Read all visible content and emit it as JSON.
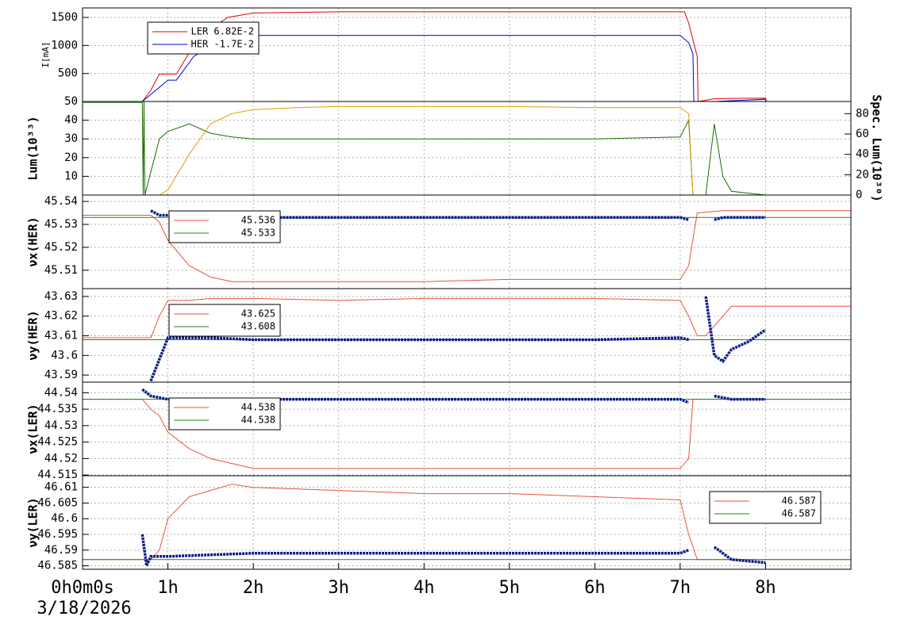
{
  "chart_data": [
    {
      "type": "line",
      "y_label": "I[mA]",
      "xlim": [
        0,
        9
      ],
      "ylim": [
        0,
        1670
      ],
      "yticks": [
        500,
        1000,
        1500
      ],
      "grid": true,
      "legend": "upper left",
      "series": [
        {
          "name": "LER 6.82E-2",
          "color": "#e00000",
          "x": [
            0,
            0.7,
            0.8,
            0.9,
            1.1,
            1.3,
            1.5,
            1.7,
            2,
            3,
            4,
            5,
            6,
            7,
            7.05,
            7.1,
            7.2,
            7.21,
            7.4,
            7.6,
            8,
            8.01,
            9
          ],
          "values": [
            0,
            0,
            200,
            490,
            490,
            1000,
            1300,
            1500,
            1580,
            1600,
            1600,
            1600,
            1600,
            1600,
            1600,
            1400,
            800,
            0,
            50,
            55,
            60,
            0,
            0
          ]
        },
        {
          "name": "HER -1.7E-2",
          "color": "#0000e0",
          "x": [
            0,
            0.7,
            1,
            1.1,
            1.3,
            1.5,
            1.6,
            2,
            3,
            4,
            5,
            6,
            7,
            7.1,
            7.15,
            7.16,
            7.4,
            8,
            8.01,
            9
          ],
          "values": [
            0,
            0,
            380,
            380,
            800,
            1000,
            1180,
            1180,
            1180,
            1180,
            1180,
            1180,
            1180,
            1050,
            850,
            0,
            0,
            40,
            0,
            0
          ]
        }
      ]
    },
    {
      "type": "line",
      "y_label": "Lum(10³³)",
      "y2_label": "Spec. Lum(10³⁰)",
      "xlim": [
        0,
        9
      ],
      "ylim": [
        0,
        50
      ],
      "yticks": [
        10,
        20,
        30,
        40,
        50
      ],
      "y2lim": [
        0,
        92
      ],
      "y2ticks": [
        0,
        20,
        40,
        60,
        80
      ],
      "grid": true,
      "series": [
        {
          "color": "#1a6e00",
          "x": [
            0,
            0.7,
            0.71,
            0.72,
            0.73,
            0.9,
            1,
            1.25,
            1.5,
            1.75,
            2,
            2.5,
            3,
            4,
            5,
            6,
            7,
            7.1,
            7.15,
            7.16,
            7.3,
            7.4,
            7.5,
            7.6,
            7.8,
            8
          ],
          "values": [
            49.5,
            49.5,
            0,
            50,
            0,
            30,
            34,
            38,
            33,
            31,
            30,
            30,
            30,
            30,
            30,
            30,
            31,
            40,
            0,
            0,
            0,
            38,
            10,
            2,
            1,
            0
          ]
        },
        {
          "color": "#e0a000",
          "axis": "y2",
          "x": [
            0.9,
            1,
            1.25,
            1.5,
            1.75,
            2,
            2.5,
            3,
            4,
            5,
            6,
            7,
            7.1,
            7.15
          ],
          "values": [
            0,
            5,
            40,
            70,
            80,
            84,
            86,
            87,
            87,
            87,
            86,
            86,
            80,
            0
          ]
        }
      ]
    },
    {
      "type": "line",
      "y_label": "νx(HER)",
      "xlim": [
        0,
        9
      ],
      "ylim": [
        45.502,
        45.5428
      ],
      "yticks": [
        45.51,
        45.52,
        45.53,
        45.54
      ],
      "grid": true,
      "legend": "upper left",
      "series": [
        {
          "name": "45.536",
          "color": "#e8543a",
          "x": [
            0,
            0.8,
            0.9,
            1,
            1.25,
            1.5,
            1.75,
            2,
            3,
            4,
            5,
            6,
            7,
            7.1,
            7.2,
            7.5,
            9
          ],
          "values": [
            45.534,
            45.534,
            45.531,
            45.523,
            45.512,
            45.507,
            45.505,
            45.505,
            45.505,
            45.505,
            45.506,
            45.506,
            45.506,
            45.512,
            45.535,
            45.536,
            45.536
          ]
        },
        {
          "name": "45.533",
          "color": "#1a8a1a",
          "x": [
            0,
            9
          ],
          "values": [
            45.533,
            45.533
          ]
        },
        {
          "color": "#0a1a8a",
          "marker": true,
          "x": [
            0.8,
            0.9,
            1,
            2,
            3,
            4,
            5,
            6,
            7,
            7.1,
            7.2,
            7.4,
            7.5,
            8
          ],
          "values": [
            45.536,
            45.534,
            45.534,
            45.533,
            45.533,
            45.533,
            45.533,
            45.533,
            45.533,
            45.532,
            null,
            45.532,
            45.533,
            45.533
          ]
        }
      ]
    },
    {
      "type": "line",
      "y_label": "νy(HER)",
      "xlim": [
        0,
        9
      ],
      "ylim": [
        43.5864,
        43.634
      ],
      "yticks": [
        43.59,
        {
          "value": 43.6,
          "label": "43.6"
        },
        43.61,
        43.62,
        43.63
      ],
      "grid": true,
      "legend": "upper left",
      "series": [
        {
          "name": "43.625",
          "color": "#e8543a",
          "x": [
            0,
            0.8,
            0.9,
            1,
            1.25,
            1.5,
            2,
            3,
            4,
            5,
            6,
            7,
            7.1,
            7.2,
            7.3,
            7.5,
            7.6,
            9
          ],
          "values": [
            43.609,
            43.609,
            43.62,
            43.628,
            43.628,
            43.629,
            43.629,
            43.628,
            43.629,
            43.629,
            43.629,
            43.628,
            43.62,
            43.61,
            43.61,
            43.62,
            43.625,
            43.625
          ]
        },
        {
          "name": "43.608",
          "color": "#1a8a1a",
          "x": [
            0,
            9
          ],
          "values": [
            43.608,
            43.608
          ]
        },
        {
          "color": "#0a1a8a",
          "marker": true,
          "x": [
            0.8,
            0.9,
            1,
            1.5,
            2,
            3,
            4,
            5,
            6,
            7,
            7.1,
            7.2,
            7.3,
            7.4,
            7.5,
            7.6,
            7.8,
            8
          ],
          "values": [
            43.587,
            43.598,
            43.609,
            43.609,
            43.608,
            43.608,
            43.608,
            43.608,
            43.608,
            43.609,
            43.608,
            null,
            43.63,
            43.6,
            43.597,
            43.603,
            43.607,
            43.613
          ]
        }
      ]
    },
    {
      "type": "line",
      "y_label": "νx(LER)",
      "xlim": [
        0,
        9
      ],
      "ylim": [
        44.5148,
        44.5432
      ],
      "yticks": [
        44.515,
        44.52,
        44.525,
        44.53,
        44.535,
        44.54
      ],
      "grid": true,
      "legend": "upper left",
      "series": [
        {
          "name": "44.538",
          "color": "#e8543a",
          "x": [
            0,
            0.7,
            0.8,
            0.9,
            1,
            1.25,
            1.5,
            2,
            3,
            4,
            5,
            6,
            7,
            7.1,
            7.15,
            9
          ],
          "values": [
            44.538,
            44.538,
            44.535,
            44.533,
            44.528,
            44.523,
            44.52,
            44.517,
            44.517,
            44.517,
            44.517,
            44.517,
            44.517,
            44.52,
            44.538,
            44.538
          ]
        },
        {
          "name": "44.538",
          "color": "#1a8a1a",
          "x": [
            0,
            9
          ],
          "values": [
            44.538,
            44.538
          ]
        },
        {
          "color": "#0a1a8a",
          "marker": true,
          "x": [
            0.7,
            0.8,
            1,
            2,
            3,
            4,
            5,
            6,
            7,
            7.1,
            7.2,
            7.4,
            7.6,
            8
          ],
          "values": [
            44.541,
            44.539,
            44.538,
            44.538,
            44.538,
            44.538,
            44.538,
            44.538,
            44.538,
            44.537,
            null,
            44.539,
            44.538,
            44.538
          ]
        }
      ]
    },
    {
      "type": "line",
      "y_label": "νy(LER)",
      "xlim": [
        0,
        9
      ],
      "ylim": [
        46.5839,
        46.6137
      ],
      "yticks": [
        46.585,
        46.59,
        46.595,
        {
          "value": 46.6,
          "label": "46.6"
        },
        46.605,
        46.61
      ],
      "grid": true,
      "legend": "upper right",
      "xticks": [
        {
          "value": 0,
          "label": "0h0m0s"
        },
        {
          "value": 1,
          "label": "1h"
        },
        {
          "value": 2,
          "label": "2h"
        },
        {
          "value": 3,
          "label": "3h"
        },
        {
          "value": 4,
          "label": "4h"
        },
        {
          "value": 5,
          "label": "5h"
        },
        {
          "value": 6,
          "label": "6h"
        },
        {
          "value": 7,
          "label": "7h"
        },
        {
          "value": 8,
          "label": "8h"
        }
      ],
      "date_label": "3/18/2026",
      "series": [
        {
          "name": "46.587",
          "color": "#e8543a",
          "x": [
            0,
            0.8,
            0.9,
            1,
            1.25,
            1.5,
            1.75,
            2,
            3,
            4,
            5,
            6,
            7,
            7.1,
            7.2,
            9
          ],
          "values": [
            46.587,
            46.587,
            46.59,
            46.6,
            46.607,
            46.609,
            46.611,
            46.61,
            46.609,
            46.608,
            46.608,
            46.607,
            46.606,
            46.595,
            46.587,
            46.587
          ]
        },
        {
          "name": "46.587",
          "color": "#1a8a1a",
          "x": [
            0,
            9
          ],
          "values": [
            46.587,
            46.587
          ]
        },
        {
          "color": "#0a1a8a",
          "marker": true,
          "x": [
            0.7,
            0.75,
            0.8,
            1,
            2,
            3,
            4,
            5,
            6,
            7,
            7.1,
            7.2,
            7.4,
            7.5,
            7.6,
            8
          ],
          "values": [
            46.595,
            46.585,
            46.588,
            46.588,
            46.589,
            46.589,
            46.589,
            46.589,
            46.589,
            46.589,
            46.59,
            null,
            46.591,
            46.589,
            46.587,
            46.586
          ]
        }
      ]
    }
  ]
}
